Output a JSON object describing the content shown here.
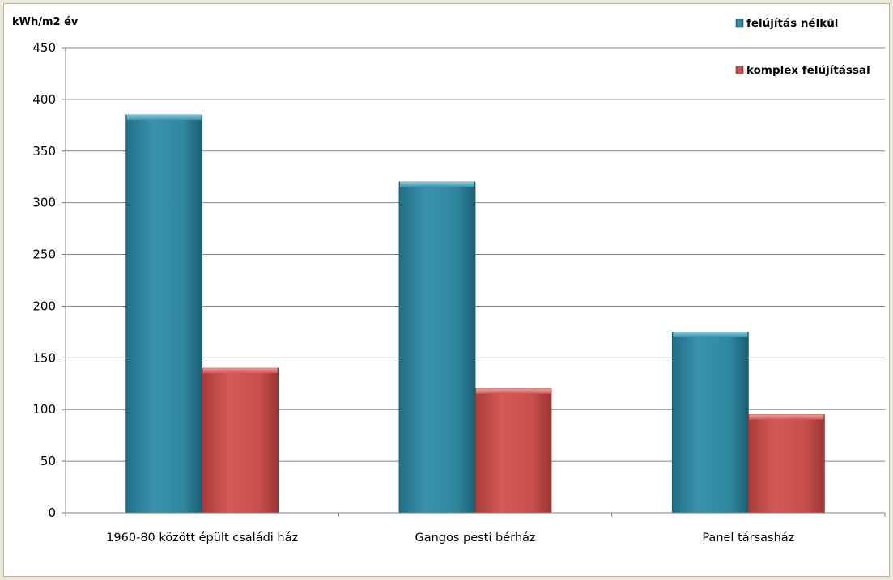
{
  "chart_data": {
    "type": "bar",
    "ylabel": "kWh/m2 év",
    "ylim": [
      0,
      450
    ],
    "yticks": [
      0,
      50,
      100,
      150,
      200,
      250,
      300,
      350,
      400,
      450
    ],
    "grid": true,
    "legend_position": "top-right",
    "categories": [
      "1960-80 között épült családi ház",
      "Gangos pesti bérház",
      "Panel társasház"
    ],
    "series": [
      {
        "name": "felújítás nélkül",
        "color": "#2f8aa6",
        "values": [
          385,
          320,
          175
        ]
      },
      {
        "name": "komplex felújítással",
        "color": "#c9504e",
        "values": [
          140,
          120,
          95
        ]
      }
    ]
  }
}
